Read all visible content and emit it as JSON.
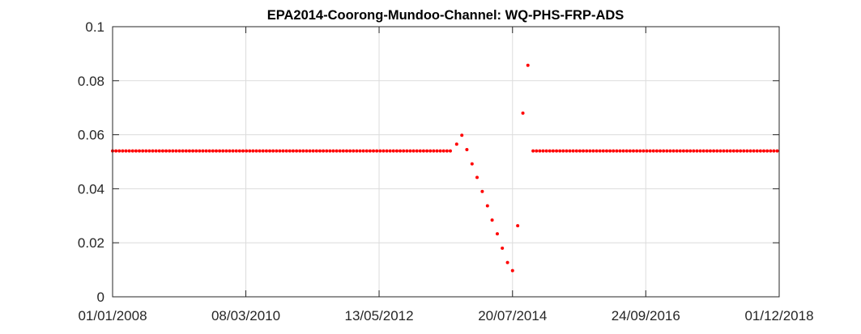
{
  "chart_data": {
    "type": "scatter",
    "title": "EPA2014-Coorong-Mundoo-Channel: WQ-PHS-FRP-ADS",
    "xlabel": "",
    "ylabel": "",
    "x_axis_type": "date",
    "xlim": [
      "2008-01-01",
      "2018-12-01"
    ],
    "ylim": [
      0,
      0.1
    ],
    "x_ticks": [
      "01/01/2008",
      "08/03/2010",
      "13/05/2012",
      "20/07/2014",
      "24/09/2016",
      "01/12/2018"
    ],
    "y_ticks": [
      "0",
      "0.02",
      "0.04",
      "0.06",
      "0.08",
      "0.1"
    ],
    "grid": true,
    "marker_color": "#ff0000",
    "series": [
      {
        "constant_segments": [
          {
            "from": "2008-01-01",
            "to": "2013-08-01",
            "value": 0.054,
            "step_days": 20
          },
          {
            "from": "2014-11-20",
            "to": "2018-12-01",
            "value": 0.054,
            "step_days": 20
          }
        ],
        "points": [
          {
            "x": "2013-08-20",
            "y": 0.0565
          },
          {
            "x": "2013-09-20",
            "y": 0.0598
          },
          {
            "x": "2013-10-20",
            "y": 0.0545
          },
          {
            "x": "2013-11-20",
            "y": 0.0492
          },
          {
            "x": "2013-12-20",
            "y": 0.0442
          },
          {
            "x": "2014-01-20",
            "y": 0.039
          },
          {
            "x": "2014-02-20",
            "y": 0.0337
          },
          {
            "x": "2014-03-20",
            "y": 0.0284
          },
          {
            "x": "2014-04-20",
            "y": 0.0233
          },
          {
            "x": "2014-05-20",
            "y": 0.018
          },
          {
            "x": "2014-06-20",
            "y": 0.0127
          },
          {
            "x": "2014-07-20",
            "y": 0.0097
          },
          {
            "x": "2014-08-20",
            "y": 0.0263
          },
          {
            "x": "2014-09-20",
            "y": 0.068
          },
          {
            "x": "2014-10-20",
            "y": 0.0857
          }
        ]
      }
    ]
  }
}
